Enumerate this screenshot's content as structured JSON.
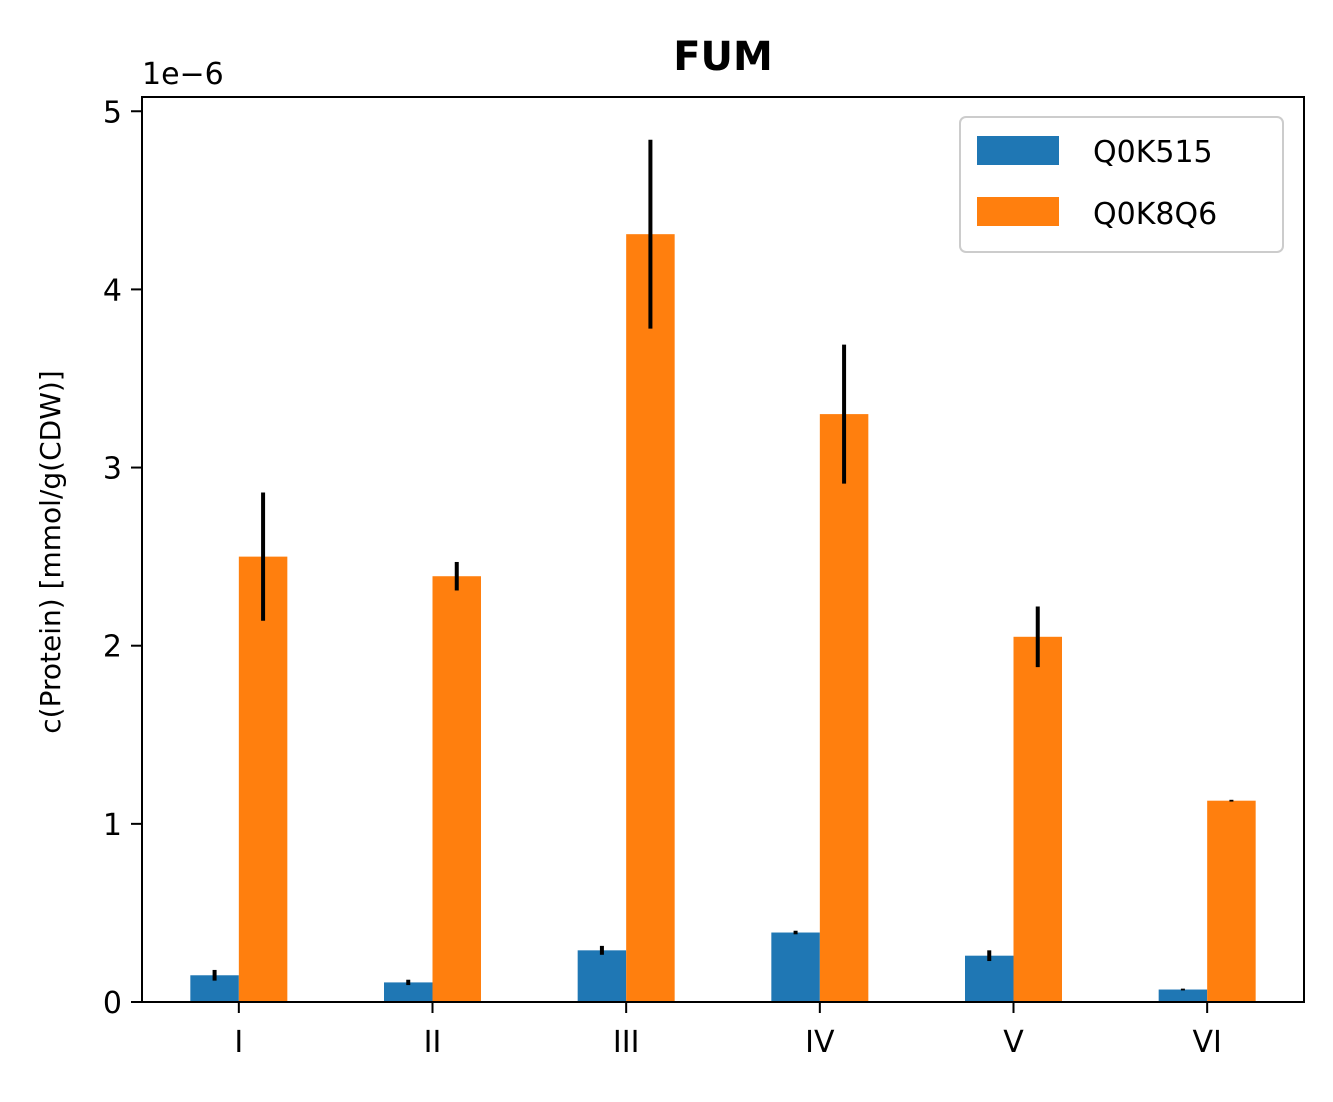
{
  "chart_data": {
    "type": "bar",
    "title": "FUM",
    "ylabel": "c(Protein) [mmol/g(CDW)]",
    "xlabel": "",
    "offset_label": "1e−6",
    "scale": 1e-06,
    "ylim": [
      0,
      5.08
    ],
    "yticks": [
      0,
      1,
      2,
      3,
      4,
      5
    ],
    "ytick_labels": [
      "0",
      "1",
      "2",
      "3",
      "4",
      "5"
    ],
    "categories": [
      "I",
      "II",
      "III",
      "IV",
      "V",
      "VI"
    ],
    "legend_position": "upper-right",
    "series": [
      {
        "name": "Q0K515",
        "color": "#1f77b4",
        "values": [
          0.15,
          0.11,
          0.29,
          0.39,
          0.26,
          0.07
        ],
        "errors": [
          0.03,
          0.015,
          0.025,
          0.01,
          0.03,
          0.005
        ]
      },
      {
        "name": "Q0K8Q6",
        "color": "#ff7f0e",
        "values": [
          2.5,
          2.39,
          4.31,
          3.3,
          2.05,
          1.13
        ],
        "errors": [
          0.36,
          0.08,
          0.53,
          0.39,
          0.17,
          0.005
        ]
      }
    ]
  }
}
